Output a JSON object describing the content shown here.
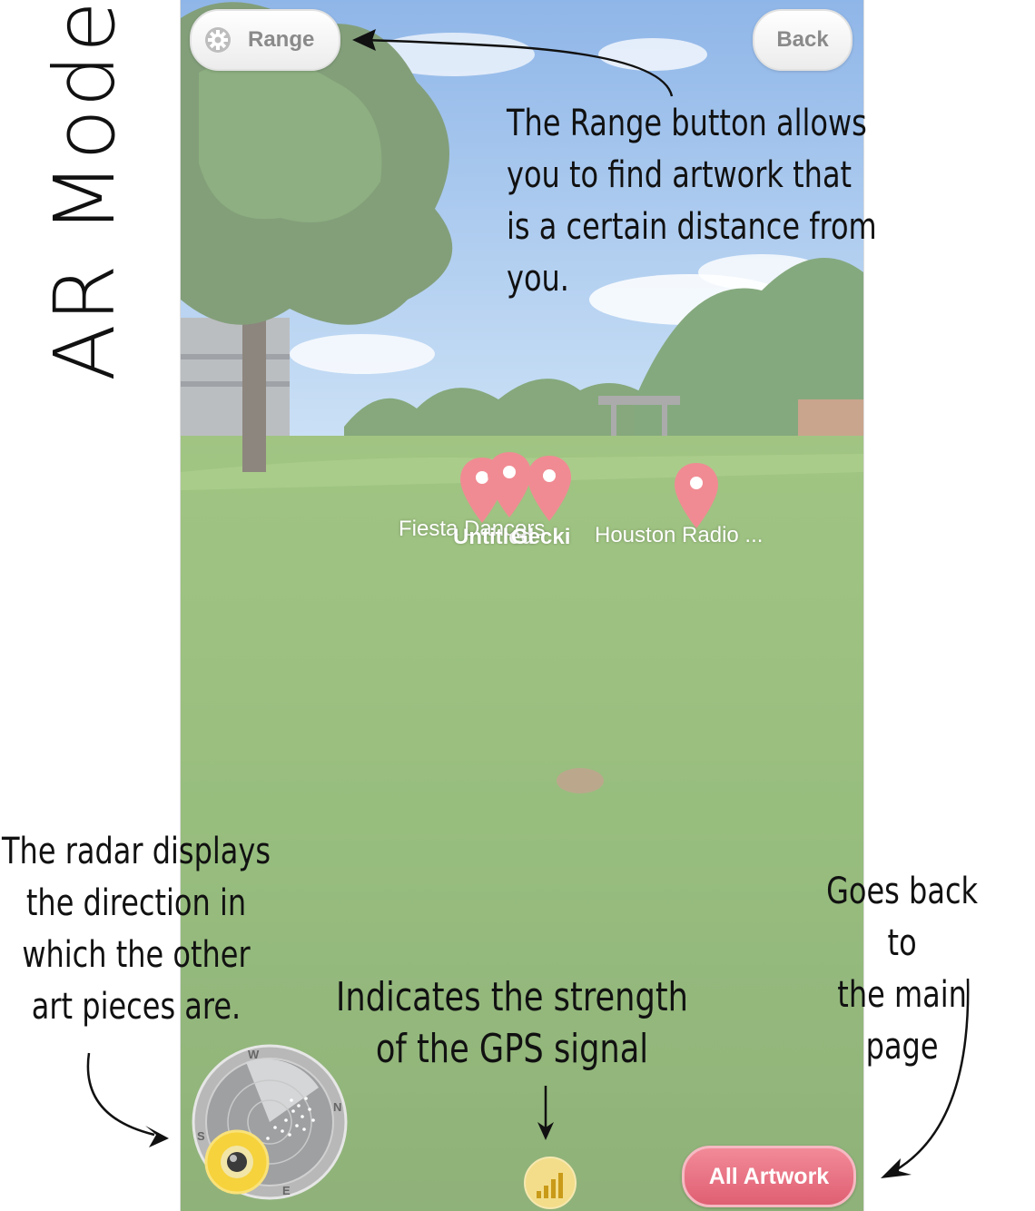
{
  "title": "AR Mode",
  "buttons": {
    "range_label": "Range",
    "back_label": "Back",
    "all_artwork_label": "All Artwork"
  },
  "markers": [
    {
      "label": "Fiesta Dancers"
    },
    {
      "label": "Untitled"
    },
    {
      "label": "Gecki"
    },
    {
      "label": "Houston Radio ..."
    }
  ],
  "radar": {
    "directions": {
      "n": "N",
      "s": "S",
      "e": "E",
      "w": "W"
    }
  },
  "annotations": {
    "range_note": "The Range button allows\nyou to find artwork that\nis a certain distance from you.",
    "radar_note": "The radar displays\nthe direction in\nwhich the other\nart pieces are.",
    "gps_note": "Indicates the strength\nof the GPS signal",
    "back_note": "Goes back to\nthe main page"
  },
  "colors": {
    "marker": "#f08b93",
    "all_artwork_button": "#e56578",
    "gps_badge": "#f3dd8a"
  },
  "icons": [
    "gear-icon",
    "map-pin-icon",
    "radar-icon",
    "camera-icon",
    "signal-bars-icon"
  ]
}
